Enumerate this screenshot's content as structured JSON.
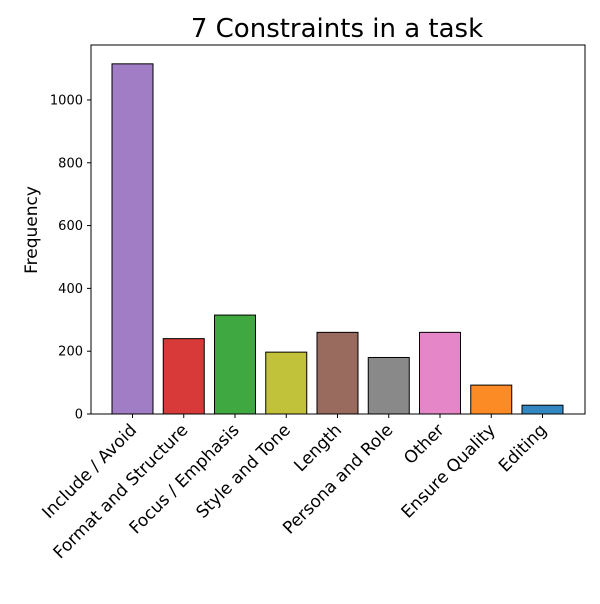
{
  "chart_data": {
    "type": "bar",
    "title": "7 Constraints in a task",
    "xlabel": "",
    "ylabel": "Frequency",
    "categories": [
      "Include / Avoid",
      "Format and Structure",
      "Focus / Emphasis",
      "Style and Tone",
      "Length",
      "Persona and Role",
      "Other",
      "Ensure Quality",
      "Editing"
    ],
    "values": [
      1115,
      240,
      315,
      197,
      260,
      180,
      260,
      92,
      28
    ],
    "colors": [
      "#a17dc6",
      "#d83a3a",
      "#40a840",
      "#c2c23a",
      "#996a5e",
      "#898989",
      "#e586c8",
      "#fd8b25",
      "#3387c1"
    ],
    "ylim": [
      0,
      1175
    ],
    "yticks": [
      0,
      200,
      400,
      600,
      800,
      1000
    ],
    "grid": false,
    "legend": "none"
  }
}
